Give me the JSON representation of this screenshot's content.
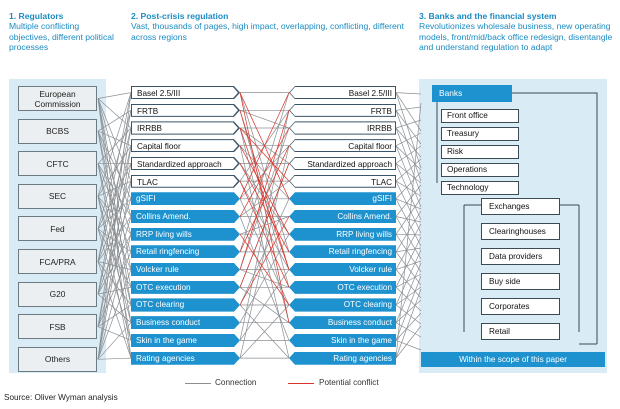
{
  "sections": {
    "regulators": {
      "title": "1. Regulators",
      "desc": "Multiple conflicting objectives, different political processes"
    },
    "regulation": {
      "title": "2. Post-crisis regulation",
      "desc": "Vast, thousands of pages, high impact, overlapping, conflicting, different across regions"
    },
    "banks": {
      "title": "3. Banks and the financial system",
      "desc": "Revolutionizes wholesale business, new operating models, front/mid/back office redesign, disentangle and understand regulation to adapt"
    }
  },
  "regulators": [
    "European Commission",
    "BCBS",
    "CFTC",
    "SEC",
    "Fed",
    "FCA/PRA",
    "G20",
    "FSB",
    "Others"
  ],
  "regulations": [
    "Basel 2.5/III",
    "FRTB",
    "IRRBB",
    "Capital floor",
    "Standardized approach",
    "TLAC",
    "gSIFI",
    "Collins Amend.",
    "RRP living wills",
    "Retail ringfencing",
    "Volcker rule",
    "OTC execution",
    "OTC clearing",
    "Business conduct",
    "Skin in the game",
    "Rating agencies"
  ],
  "banks": {
    "header": "Banks",
    "internal": [
      "Front office",
      "Treasury",
      "Risk",
      "Operations",
      "Technology"
    ],
    "external": [
      "Exchanges",
      "Clearinghouses",
      "Data providers",
      "Buy side",
      "Corporates",
      "Retail"
    ],
    "scope_label": "Within the scope of this paper"
  },
  "legend": {
    "connection": "Connection",
    "conflict": "Potential conflict"
  },
  "colors": {
    "accent": "#1d92cf",
    "panel": "#d9ecf5",
    "connection": "#8a8f93",
    "conflict": "#d9342b"
  },
  "source": "Source: Oliver Wyman analysis"
}
